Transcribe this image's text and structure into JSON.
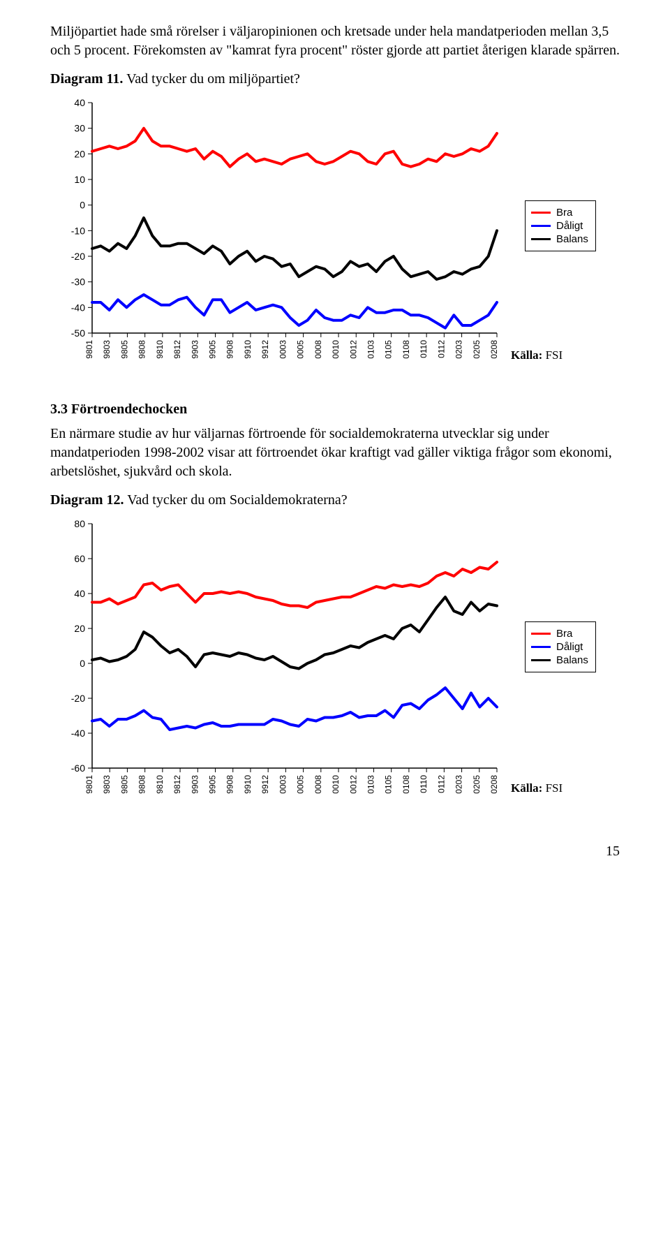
{
  "intro_paragraph": "Miljöpartiet hade små rörelser i väljaropinionen och kretsade under hela mandatperioden mellan 3,5 och 5 procent. Förekomsten av \"kamrat fyra procent\" röster gjorde att partiet återigen klarade spärren.",
  "diagram11": {
    "label": "Diagram 11.",
    "question": "Vad tycker du om miljöpartiet?",
    "ylim": [
      -50,
      40
    ],
    "ytick_step": 10,
    "x_categories": [
      "9801",
      "9803",
      "9805",
      "9808",
      "9810",
      "9812",
      "9903",
      "9905",
      "9908",
      "9910",
      "9912",
      "0003",
      "0005",
      "0008",
      "0010",
      "0012",
      "0103",
      "0105",
      "0108",
      "0110",
      "0112",
      "0203",
      "0205",
      "0208"
    ],
    "series": {
      "bra": {
        "label": "Bra",
        "color": "#ff0000",
        "width": 4,
        "values": [
          21,
          22,
          23,
          22,
          23,
          25,
          30,
          25,
          23,
          23,
          22,
          21,
          22,
          18,
          21,
          19,
          15,
          18,
          20,
          17,
          18,
          17,
          16,
          18,
          19,
          20,
          17,
          16,
          17,
          19,
          21,
          20,
          17,
          16,
          20,
          21,
          16,
          15,
          16,
          18,
          17,
          20,
          19,
          20,
          22,
          21,
          23,
          28
        ]
      },
      "balans": {
        "label": "Balans",
        "color": "#000000",
        "width": 4,
        "values": [
          -17,
          -16,
          -18,
          -15,
          -17,
          -12,
          -5,
          -12,
          -16,
          -16,
          -15,
          -15,
          -17,
          -19,
          -16,
          -18,
          -23,
          -20,
          -18,
          -22,
          -20,
          -21,
          -24,
          -23,
          -28,
          -26,
          -24,
          -25,
          -28,
          -26,
          -22,
          -24,
          -23,
          -26,
          -22,
          -20,
          -25,
          -28,
          -27,
          -26,
          -29,
          -28,
          -26,
          -27,
          -25,
          -24,
          -20,
          -10
        ]
      },
      "daligt": {
        "label": "Dåligt",
        "color": "#0000ff",
        "width": 4,
        "values": [
          -38,
          -38,
          -41,
          -37,
          -40,
          -37,
          -35,
          -37,
          -39,
          -39,
          -37,
          -36,
          -40,
          -43,
          -37,
          -37,
          -42,
          -40,
          -38,
          -41,
          -40,
          -39,
          -40,
          -44,
          -47,
          -45,
          -41,
          -44,
          -45,
          -45,
          -43,
          -44,
          -40,
          -42,
          -42,
          -41,
          -41,
          -43,
          -43,
          -44,
          -46,
          -48,
          -43,
          -47,
          -47,
          -45,
          -43,
          -38
        ]
      }
    },
    "legend_order": [
      "bra",
      "daligt",
      "balans"
    ],
    "source_label": "Källa:",
    "source_value": "FSI"
  },
  "section33_head": "3.3 Förtroendechocken",
  "section33_body": "En närmare studie av hur väljarnas förtroende för socialdemokraterna utvecklar sig under mandatperioden 1998-2002 visar att förtroendet ökar kraftigt vad gäller viktiga frågor som ekonomi, arbetslöshet, sjukvård och skola.",
  "diagram12": {
    "label": "Diagram 12.",
    "question": "Vad tycker du om Socialdemokraterna?",
    "ylim": [
      -60,
      80
    ],
    "ytick_step": 20,
    "x_categories": [
      "9801",
      "9803",
      "9805",
      "9808",
      "9810",
      "9812",
      "9903",
      "9905",
      "9908",
      "9910",
      "9912",
      "0003",
      "0005",
      "0008",
      "0010",
      "0012",
      "0103",
      "0105",
      "0108",
      "0110",
      "0112",
      "0203",
      "0205",
      "0208"
    ],
    "series": {
      "bra": {
        "label": "Bra",
        "color": "#ff0000",
        "width": 4,
        "values": [
          35,
          35,
          37,
          34,
          36,
          38,
          45,
          46,
          42,
          44,
          45,
          40,
          35,
          40,
          40,
          41,
          40,
          41,
          40,
          38,
          37,
          36,
          34,
          33,
          33,
          32,
          35,
          36,
          37,
          38,
          38,
          40,
          42,
          44,
          43,
          45,
          44,
          45,
          44,
          46,
          50,
          52,
          50,
          54,
          52,
          55,
          54,
          58
        ]
      },
      "balans": {
        "label": "Balans",
        "color": "#000000",
        "width": 4,
        "values": [
          2,
          3,
          1,
          2,
          4,
          8,
          18,
          15,
          10,
          6,
          8,
          4,
          -2,
          5,
          6,
          5,
          4,
          6,
          5,
          3,
          2,
          4,
          1,
          -2,
          -3,
          0,
          2,
          5,
          6,
          8,
          10,
          9,
          12,
          14,
          16,
          14,
          20,
          22,
          18,
          25,
          32,
          38,
          30,
          28,
          35,
          30,
          34,
          33
        ]
      },
      "daligt": {
        "label": "Dåligt",
        "color": "#0000ff",
        "width": 4,
        "values": [
          -33,
          -32,
          -36,
          -32,
          -32,
          -30,
          -27,
          -31,
          -32,
          -38,
          -37,
          -36,
          -37,
          -35,
          -34,
          -36,
          -36,
          -35,
          -35,
          -35,
          -35,
          -32,
          -33,
          -35,
          -36,
          -32,
          -33,
          -31,
          -31,
          -30,
          -28,
          -31,
          -30,
          -30,
          -27,
          -31,
          -24,
          -23,
          -26,
          -21,
          -18,
          -14,
          -20,
          -26,
          -17,
          -25,
          -20,
          -25
        ]
      }
    },
    "legend_order": [
      "bra",
      "daligt",
      "balans"
    ],
    "source_label": "Källa:",
    "source_value": "FSI"
  },
  "page_number": "15"
}
